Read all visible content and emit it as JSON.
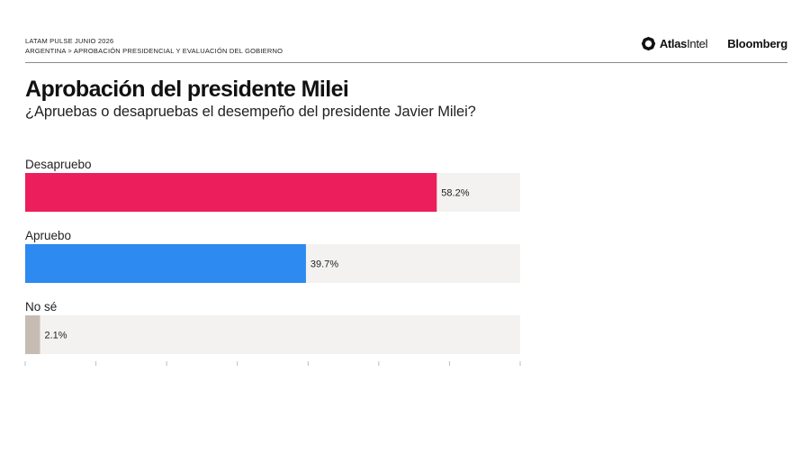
{
  "header": {
    "series": "LATAM PULSE JUNIO 2026",
    "breadcrumb": "ARGENTINA > APROBACIÓN PRESIDENCIAL Y EVALUACIÓN DEL GOBIERNO",
    "logo_atlas_bold": "Atlas",
    "logo_atlas_light": "Intel",
    "logo_bloomberg": "Bloomberg"
  },
  "chart_data": {
    "type": "bar",
    "orientation": "horizontal",
    "title": "Aprobación del presidente Milei",
    "subtitle": "¿Apruebas o desapruebas el desempeño del presidente Javier Milei?",
    "categories": [
      "Desapruebo",
      "Apruebo",
      "No sé"
    ],
    "values": [
      58.2,
      39.7,
      2.1
    ],
    "value_labels": [
      "58.2%",
      "39.7%",
      "2.1%"
    ],
    "colors": [
      "#ec1e5c",
      "#2d8af0",
      "#c7bcb4"
    ],
    "track_color": "#f3f2f0",
    "xlim": [
      0,
      70
    ],
    "tick_count": 8,
    "grid": false
  }
}
